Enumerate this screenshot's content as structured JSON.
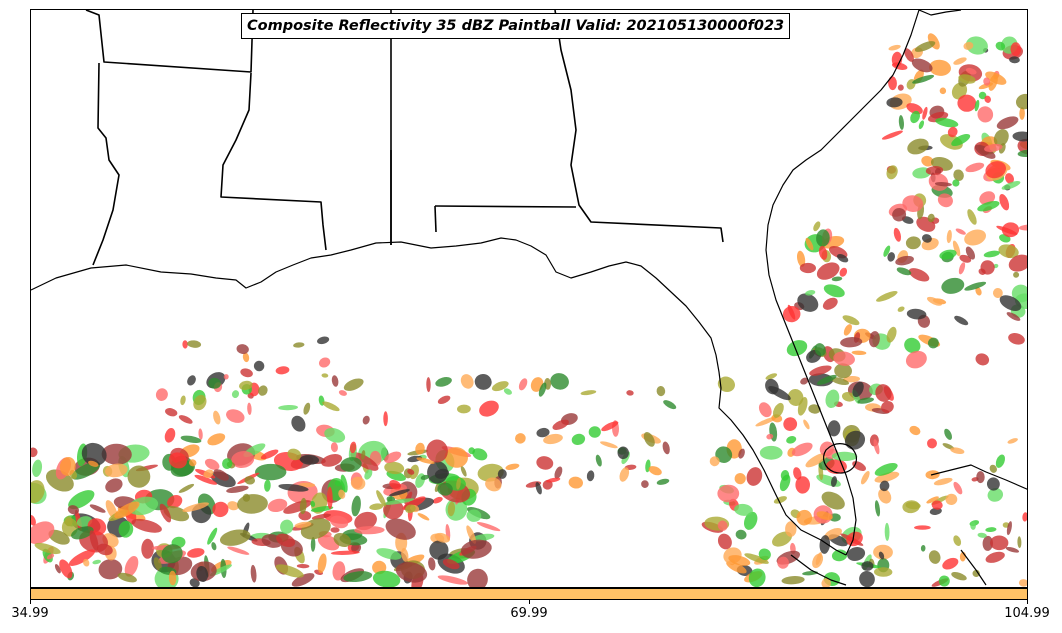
{
  "title": "Composite Reflectivity 35 dBZ Paintball Valid: 202105130000f023",
  "colorbar": {
    "color": "#ffc266",
    "ticks": [
      "34.99",
      "69.99",
      "104.99"
    ]
  },
  "paintball_colors": [
    "#ff3333",
    "#ff9933",
    "#33cc33",
    "#cc3333",
    "#8b8b2b",
    "#2e8b2e",
    "#333333",
    "#ff6a6a",
    "#9a3a3a",
    "#66dd66",
    "#aaaa33",
    "#ffaa55"
  ]
}
